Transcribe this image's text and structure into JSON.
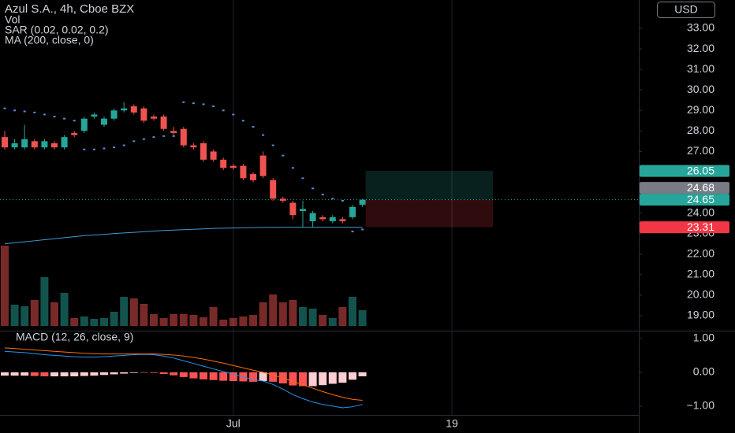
{
  "chart_data": {
    "type": "candlestick",
    "title": "Azul S.A., 4h, Cboe BZX",
    "currency": "USD",
    "categories": [
      null,
      null,
      null,
      null,
      null,
      null,
      null,
      null,
      null,
      null,
      null,
      null,
      null,
      null,
      null,
      null,
      null,
      null,
      null,
      null,
      null,
      null,
      null,
      "Jul",
      null,
      null,
      null,
      null,
      null,
      null,
      null,
      null,
      null,
      null,
      null,
      null,
      null,
      null,
      null,
      null,
      null,
      null,
      null,
      null,
      null,
      "19"
    ],
    "open": [
      27.7,
      27.2,
      27.2,
      27.5,
      27.2,
      27.4,
      27.2,
      27.9,
      28.0,
      28.7,
      28.3,
      28.6,
      29.0,
      29.2,
      29.1,
      28.7,
      28.7,
      28.0,
      28.1,
      27.3,
      27.4,
      27.0,
      26.6,
      26.3,
      26.3,
      25.9,
      26.8,
      25.6,
      24.7,
      24.5,
      24.1,
      23.6,
      23.8,
      23.6,
      23.7,
      23.8,
      24.4,
      null,
      null,
      null,
      null,
      null,
      null,
      null,
      null,
      null
    ],
    "high": [
      28.0,
      27.6,
      28.3,
      27.6,
      27.6,
      27.5,
      27.8,
      28.0,
      28.7,
      28.9,
      28.7,
      29.1,
      29.4,
      29.3,
      29.2,
      28.8,
      28.8,
      28.2,
      28.2,
      27.4,
      27.5,
      27.1,
      26.7,
      26.4,
      26.4,
      26.0,
      27.0,
      25.7,
      24.8,
      24.6,
      24.6,
      24.1,
      23.9,
      23.9,
      23.8,
      24.4,
      24.7,
      null,
      null,
      null,
      null,
      null,
      null,
      null,
      null,
      null
    ],
    "low": [
      27.1,
      27.1,
      27.1,
      27.1,
      27.1,
      27.1,
      27.1,
      27.7,
      27.9,
      28.6,
      28.2,
      28.5,
      28.9,
      28.8,
      28.4,
      28.5,
      28.0,
      27.8,
      27.2,
      27.1,
      26.5,
      26.5,
      26.1,
      26.1,
      25.6,
      25.5,
      25.7,
      24.6,
      24.5,
      23.7,
      23.3,
      23.3,
      23.6,
      23.5,
      23.5,
      23.7,
      24.3,
      null,
      null,
      null,
      null,
      null,
      null,
      null,
      null,
      null
    ],
    "close": [
      27.2,
      27.4,
      27.6,
      27.2,
      27.5,
      27.2,
      27.7,
      27.8,
      28.6,
      28.8,
      28.6,
      29.0,
      29.1,
      28.9,
      28.5,
      28.6,
      28.1,
      27.9,
      27.3,
      27.2,
      26.6,
      26.6,
      26.2,
      26.2,
      25.7,
      25.6,
      25.8,
      24.7,
      24.6,
      23.9,
      24.2,
      24.0,
      23.7,
      23.8,
      23.6,
      24.3,
      24.65,
      null,
      null,
      null,
      null,
      null,
      null,
      null,
      null,
      null
    ],
    "up_color": "#26a69a",
    "down_color": "#ef5350",
    "ylim": [
      18.27,
      34.38
    ],
    "yticks": [
      {
        "value": 19,
        "label": "19.00"
      },
      {
        "value": 20,
        "label": "20.00"
      },
      {
        "value": 21,
        "label": "21.00"
      },
      {
        "value": 22,
        "label": "22.00"
      },
      {
        "value": 23,
        "label": "23.00"
      },
      {
        "value": 24,
        "label": "24.00"
      },
      {
        "value": 25,
        "label": "25.00"
      },
      {
        "value": 26,
        "label": "26.00"
      },
      {
        "value": 27,
        "label": "27.00"
      },
      {
        "value": 28,
        "label": "28.00"
      },
      {
        "value": 29,
        "label": "29.00"
      },
      {
        "value": 30,
        "label": "30.00"
      },
      {
        "value": 31,
        "label": "31.00"
      },
      {
        "value": 32,
        "label": "32.00"
      },
      {
        "value": 33,
        "label": "33.00"
      }
    ],
    "price_labels": [
      {
        "value": 26.05,
        "label": "26.05",
        "color": "#26a69a"
      },
      {
        "value": 24.68,
        "label": "24.68",
        "color": "#787b86"
      },
      {
        "value": 24.65,
        "label": "24.65",
        "color": "#26a69a"
      },
      {
        "value": 23.31,
        "label": "23.31",
        "color": "#f23645"
      }
    ],
    "volume": {
      "name": "Vol",
      "values": [
        102,
        27,
        25,
        33,
        62,
        30,
        42,
        10,
        12,
        9,
        10,
        18,
        37,
        35,
        28,
        15,
        10,
        15,
        15,
        14,
        11,
        24,
        8,
        10,
        12,
        14,
        30,
        40,
        30,
        33,
        24,
        22,
        14,
        10,
        24,
        37,
        20,
        null,
        null,
        null,
        null,
        null,
        null,
        null,
        null,
        null
      ]
    },
    "sar": {
      "name": "SAR (0.02, 0.02, 0.2)",
      "color": "#5b8cd6",
      "values": [
        29.1,
        29.0,
        28.95,
        28.9,
        28.8,
        28.7,
        28.6,
        28.5,
        27.1,
        27.1,
        27.15,
        27.2,
        27.3,
        27.5,
        27.6,
        27.7,
        27.75,
        27.75,
        29.4,
        29.35,
        29.3,
        29.2,
        29.0,
        28.8,
        28.5,
        28.2,
        27.8,
        27.3,
        26.8,
        26.2,
        25.7,
        25.2,
        24.9,
        24.7,
        24.6,
        23.1,
        23.2,
        null,
        null,
        null,
        null,
        null,
        null,
        null,
        null,
        null
      ]
    },
    "ma": {
      "name": "MA (200, close, 0)",
      "color": "#3d9bd6",
      "values": [
        22.5,
        22.55,
        22.6,
        22.65,
        22.7,
        22.75,
        22.8,
        22.85,
        22.9,
        22.93,
        22.96,
        23.0,
        23.03,
        23.06,
        23.09,
        23.12,
        23.15,
        23.17,
        23.19,
        23.21,
        23.23,
        23.25,
        23.26,
        23.27,
        23.28,
        23.29,
        23.3,
        23.3,
        23.31,
        23.31,
        23.31,
        23.31,
        23.31,
        23.31,
        23.31,
        23.31,
        23.31,
        null,
        null,
        null,
        null,
        null,
        null,
        null,
        null,
        null
      ]
    },
    "macd": {
      "name": "MACD (12, 26, close, 9)",
      "ylim": [
        -1.26,
        1.23
      ],
      "yticks": [
        {
          "value": 1,
          "label": "1.00"
        },
        {
          "value": 0,
          "label": "0.00"
        },
        {
          "value": -1,
          "label": "−1.00"
        }
      ],
      "macd_color": "#2196f3",
      "signal_color": "#ff6d00",
      "falling_color": "#ff5252",
      "rising_color": "#ffcdd2",
      "macd": [
        0.62,
        0.6,
        0.58,
        0.55,
        0.52,
        0.5,
        0.48,
        0.46,
        0.45,
        0.45,
        0.46,
        0.48,
        0.5,
        0.52,
        0.53,
        0.52,
        0.48,
        0.42,
        0.34,
        0.26,
        0.18,
        0.1,
        0.02,
        -0.06,
        -0.14,
        -0.22,
        -0.26,
        -0.36,
        -0.5,
        -0.66,
        -0.78,
        -0.88,
        -0.95,
        -1.0,
        -1.05,
        -1.02,
        -0.95,
        null,
        null,
        null,
        null,
        null,
        null,
        null,
        null,
        null
      ],
      "signal": [
        0.72,
        0.7,
        0.68,
        0.66,
        0.64,
        0.62,
        0.6,
        0.58,
        0.56,
        0.55,
        0.54,
        0.54,
        0.54,
        0.54,
        0.54,
        0.54,
        0.53,
        0.51,
        0.48,
        0.44,
        0.39,
        0.33,
        0.27,
        0.2,
        0.13,
        0.06,
        0,
        -0.08,
        -0.17,
        -0.27,
        -0.37,
        -0.47,
        -0.57,
        -0.66,
        -0.74,
        -0.8,
        -0.83,
        null,
        null,
        null,
        null,
        null,
        null,
        null,
        null,
        null
      ],
      "histogram": [
        -0.1,
        -0.1,
        -0.1,
        -0.11,
        -0.12,
        -0.12,
        -0.12,
        -0.12,
        -0.11,
        -0.1,
        -0.08,
        -0.06,
        -0.04,
        -0.02,
        -0.01,
        -0.02,
        -0.05,
        -0.09,
        -0.14,
        -0.18,
        -0.21,
        -0.23,
        -0.25,
        -0.26,
        -0.27,
        -0.28,
        -0.26,
        -0.28,
        -0.33,
        -0.39,
        -0.41,
        -0.41,
        -0.38,
        -0.34,
        -0.31,
        -0.22,
        -0.12,
        null,
        null,
        null,
        null,
        null,
        null,
        null,
        null,
        null
      ]
    }
  }
}
